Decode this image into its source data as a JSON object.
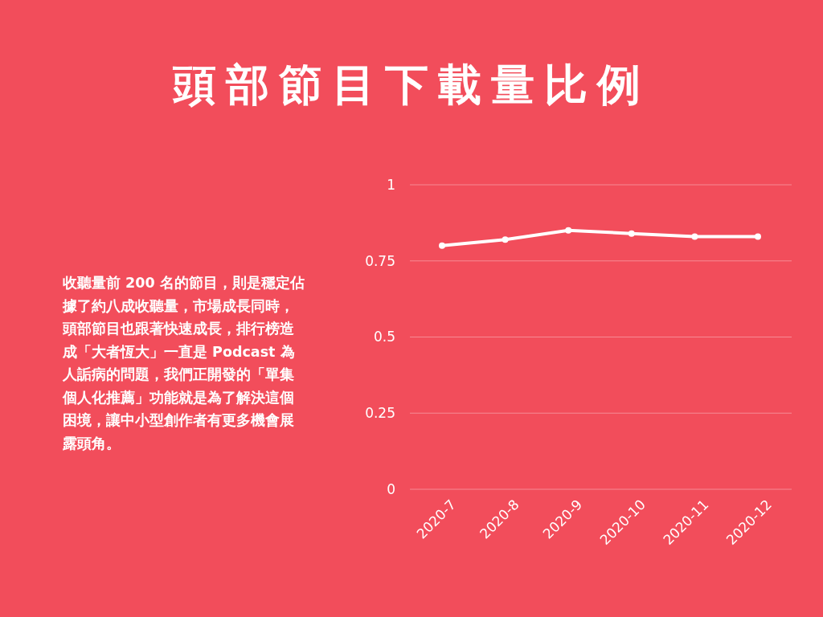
{
  "chart_data": {
    "type": "line",
    "title": "頭部節目下載量比例",
    "annotations": [
      "收聽量前 200 名的節目，則是穩定佔據了約八成收聽量，市場成長同時，頭部節目也跟著快速成長，排行榜造成「大者恆大」一直是 Podcast 為人詬病的問題，我們正開發的「單集個人化推薦」功能就是為了解決這個困境，讓中小型創作者有更多機會展露頭角。"
    ],
    "categories": [
      "2020-7",
      "2020-8",
      "2020-9",
      "2020-10",
      "2020-11",
      "2020-12"
    ],
    "series": [
      {
        "color": "#ffffff",
        "values": [
          0.8,
          0.82,
          0.85,
          0.84,
          0.83,
          0.83
        ]
      }
    ],
    "ylim": [
      0,
      1
    ],
    "yticks": [
      0,
      0.25,
      0.5,
      0.75,
      1
    ],
    "grid": "y",
    "marker": "circle",
    "line_style": "solid"
  }
}
